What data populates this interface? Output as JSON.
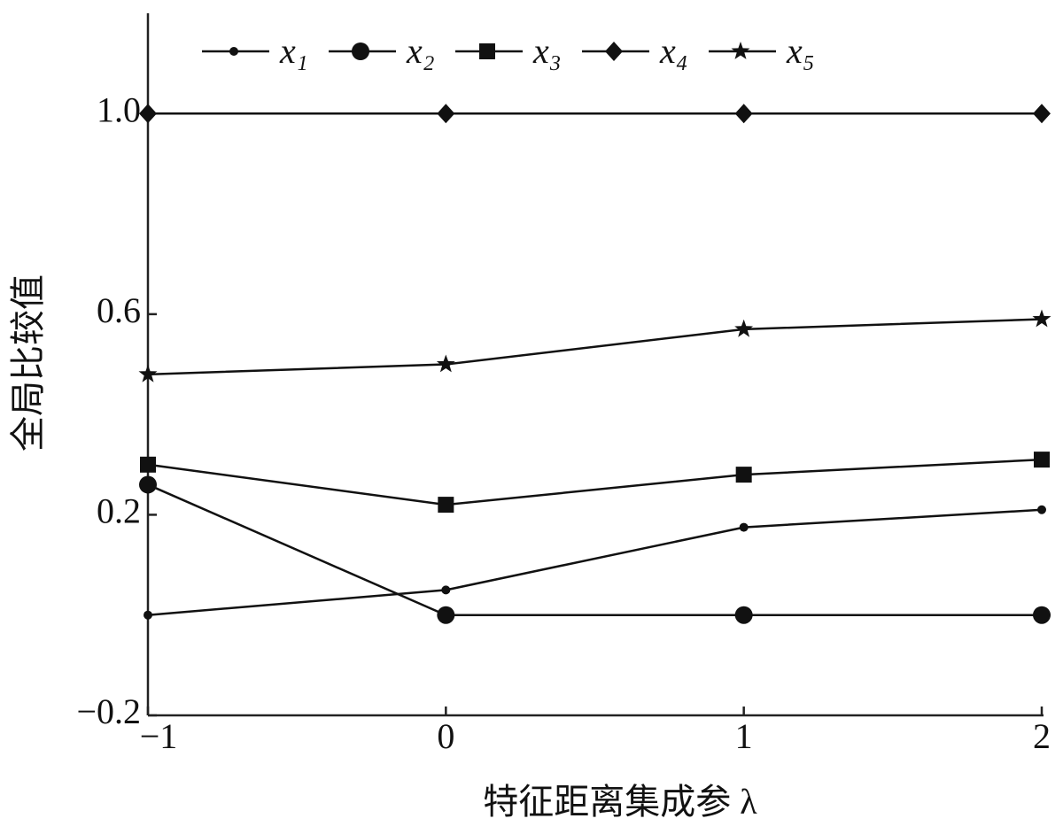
{
  "chart_data": {
    "type": "line",
    "xlabel": "特征距离集成参 λ",
    "ylabel": "全局比较值",
    "x": [
      -1,
      0,
      1,
      2
    ],
    "xlim": [
      -1,
      2
    ],
    "xticks": [
      {
        "value": -1,
        "label": "−1"
      },
      0,
      1,
      2
    ],
    "ylim": [
      -0.2,
      1.2
    ],
    "yticks": [
      {
        "value": -0.2,
        "label": "−0.2"
      },
      0.2,
      0.6,
      {
        "value": 1,
        "label": "1.0"
      }
    ],
    "grid": false,
    "legend": "top-left",
    "series": [
      {
        "name": "x₁",
        "color": "#111111",
        "marker": "dot",
        "values": [
          0.0,
          0.05,
          0.175,
          0.21
        ]
      },
      {
        "name": "x₂",
        "color": "#111111",
        "marker": "circle",
        "values": [
          0.26,
          0.0,
          0.0,
          0.0
        ]
      },
      {
        "name": "x₃",
        "color": "#111111",
        "marker": "square",
        "values": [
          0.3,
          0.22,
          0.28,
          0.31
        ]
      },
      {
        "name": "x₄",
        "color": "#111111",
        "marker": "diamond",
        "values": [
          1.0,
          1.0,
          1.0,
          1.0
        ]
      },
      {
        "name": "x₅",
        "color": "#111111",
        "marker": "star",
        "values": [
          0.48,
          0.5,
          0.57,
          0.59
        ]
      }
    ]
  }
}
